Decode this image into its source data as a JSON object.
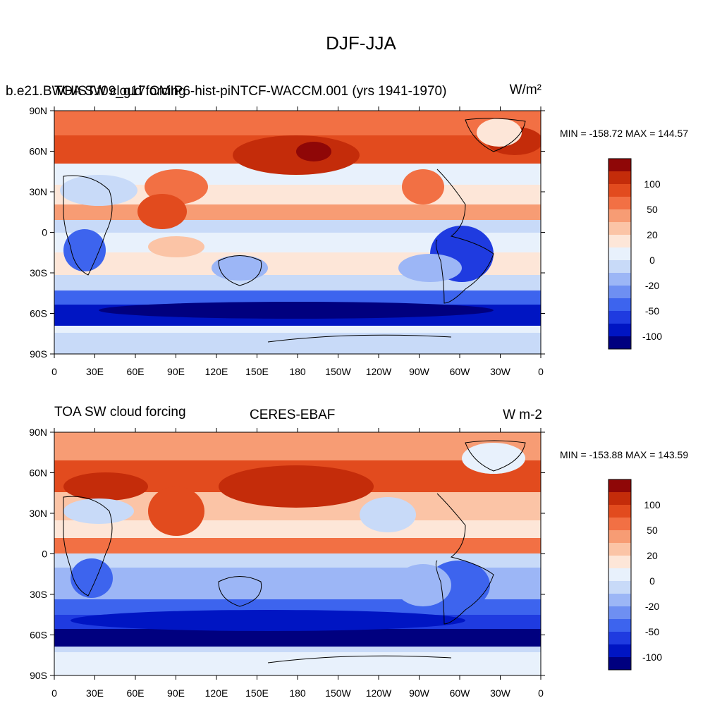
{
  "page_title": "DJF-JJA",
  "color_scale": [
    "#00007f",
    "#0015c3",
    "#1f3be0",
    "#3d64ee",
    "#6e8ff2",
    "#9cb6f6",
    "#c8daf8",
    "#e8f1fc",
    "#fde6d8",
    "#fbc4a6",
    "#f79c74",
    "#f27044",
    "#e24b1e",
    "#c42c0a",
    "#8f0707"
  ],
  "colorbar_labels": [
    "100",
    "50",
    "20",
    "0",
    "-20",
    "-50",
    "-100"
  ],
  "lat_labels": [
    "90N",
    "60N",
    "30N",
    "0",
    "30S",
    "60S",
    "90S"
  ],
  "lon_labels": [
    "0",
    "30E",
    "60E",
    "90E",
    "120E",
    "150E",
    "180",
    "150W",
    "120W",
    "90W",
    "60W",
    "30W",
    "0"
  ],
  "panels": [
    {
      "left_title": "TOA SW cloud forcing",
      "center_title": "b.e21.BWHIST.f09_g17.CMIP6-hist-piNTCF-WACCM.001 (yrs 1941-1970)",
      "right_title": "W/m²",
      "min_max": "MIN = -158.72 MAX = 144.57"
    },
    {
      "left_title": "TOA SW cloud forcing",
      "center_title": "CERES-EBAF",
      "right_title": "W m-2",
      "min_max": "MIN = -153.88 MAX = 143.59"
    }
  ]
}
